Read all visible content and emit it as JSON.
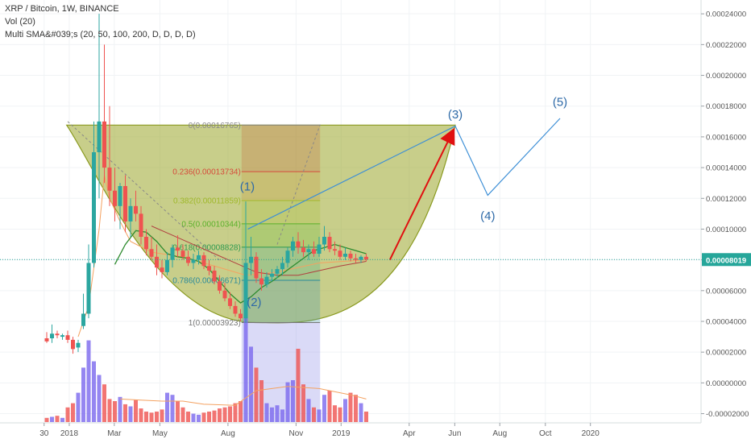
{
  "legend": {
    "symbol": "XRP / Bitcoin, 1W, BINANCE",
    "volume": "Vol (20)",
    "indicator": "Multi SMA&#039;s (20, 50, 100, 200, D, D, D, D)"
  },
  "colors": {
    "up": "#2ba6a0",
    "down": "#ef5350",
    "vol_up": "#7b68ee",
    "vol_down": "#ef5350",
    "cup_fill": "#9aa62a",
    "fib_top": "#c0885a",
    "wave": "#3d8fd6",
    "arrow": "#e01010",
    "price_tag": "#26a69a"
  },
  "chart_data": {
    "type": "candlestick",
    "timeframe": "1W",
    "y_axis": {
      "ticks": [
        "0.00024000",
        "0.00022000",
        "0.00020000",
        "0.00018000",
        "0.00016000",
        "0.00014000",
        "0.00012000",
        "0.00010000",
        "0.00008000",
        "0.00006000",
        "0.00004000",
        "0.00002000",
        "0.00000000",
        "-0.00002000"
      ],
      "last_price": "0.00008019",
      "ylim": [
        -2.6e-05,
        0.000249
      ]
    },
    "x_axis": {
      "ticks": [
        {
          "label": "30",
          "t": -0.5
        },
        {
          "label": "2018",
          "t": 4.3
        },
        {
          "label": "Mar",
          "t": 12.9
        },
        {
          "label": "May",
          "t": 21.6
        },
        {
          "label": "Aug",
          "t": 34.6
        },
        {
          "label": "Nov",
          "t": 47.6
        },
        {
          "label": "2019",
          "t": 56.2
        },
        {
          "label": "Apr",
          "t": 69.2
        },
        {
          "label": "Jun",
          "t": 77.9
        },
        {
          "label": "Aug",
          "t": 86.5
        },
        {
          "label": "Oct",
          "t": 95.2
        },
        {
          "label": "2020",
          "t": 103.8
        }
      ]
    },
    "candles": [
      {
        "o": 2.9e-05,
        "h": 3.3e-05,
        "l": 2.6e-05,
        "c": 2.7e-05
      },
      {
        "o": 2.9e-05,
        "h": 3.8e-05,
        "l": 2.6e-05,
        "c": 3.2e-05
      },
      {
        "o": 3.2e-05,
        "h": 3.4e-05,
        "l": 2.9e-05,
        "c": 3.1e-05
      },
      {
        "o": 3e-05,
        "h": 3.2e-05,
        "l": 2.8e-05,
        "c": 3.1e-05
      },
      {
        "o": 3.1e-05,
        "h": 3.4e-05,
        "l": 2.6e-05,
        "c": 2.8e-05
      },
      {
        "o": 2.8e-05,
        "h": 3e-05,
        "l": 1.9e-05,
        "c": 2.2e-05
      },
      {
        "o": 2.3e-05,
        "h": 2.8e-05,
        "l": 2e-05,
        "c": 2.6e-05
      },
      {
        "o": 3.7e-05,
        "h": 5.8e-05,
        "l": 3.5e-05,
        "c": 4.5e-05
      },
      {
        "o": 4.5e-05,
        "h": 9e-05,
        "l": 4.2e-05,
        "c": 7.8e-05
      },
      {
        "o": 7.8e-05,
        "h": 0.00017,
        "l": 7.5e-05,
        "c": 0.00015
      },
      {
        "o": 0.00015,
        "h": 0.00024,
        "l": 0.00012,
        "c": 0.00017
      },
      {
        "o": 0.00017,
        "h": 0.00022,
        "l": 0.00013,
        "c": 0.00014
      },
      {
        "o": 0.00014,
        "h": 0.00018,
        "l": 0.000115,
        "c": 0.000125
      },
      {
        "o": 0.000125,
        "h": 0.00014,
        "l": 0.000105,
        "c": 0.000115
      },
      {
        "o": 0.000115,
        "h": 0.00013,
        "l": 0.0001,
        "c": 0.000128
      },
      {
        "o": 0.000128,
        "h": 0.000135,
        "l": 9.8e-05,
        "c": 0.000105
      },
      {
        "o": 0.000105,
        "h": 0.00012,
        "l": 9.5e-05,
        "c": 0.000115
      },
      {
        "o": 0.000115,
        "h": 0.000125,
        "l": 0.000105,
        "c": 0.00011
      },
      {
        "o": 0.00011,
        "h": 0.000115,
        "l": 9e-05,
        "c": 9.5e-05
      },
      {
        "o": 9.5e-05,
        "h": 0.0001,
        "l": 8.3e-05,
        "c": 8.7e-05
      },
      {
        "o": 8.7e-05,
        "h": 9.5e-05,
        "l": 8e-05,
        "c": 8.2e-05
      },
      {
        "o": 8.2e-05,
        "h": 9e-05,
        "l": 7e-05,
        "c": 7.5e-05
      },
      {
        "o": 7.5e-05,
        "h": 8e-05,
        "l": 6.8e-05,
        "c": 7.2e-05
      },
      {
        "o": 7.2e-05,
        "h": 8.5e-05,
        "l": 7e-05,
        "c": 8e-05
      },
      {
        "o": 8e-05,
        "h": 9e-05,
        "l": 7.5e-05,
        "c": 8.8e-05
      },
      {
        "o": 8.8e-05,
        "h": 9.6e-05,
        "l": 8.2e-05,
        "c": 8.6e-05
      },
      {
        "o": 8.6e-05,
        "h": 9e-05,
        "l": 8e-05,
        "c": 8.2e-05
      },
      {
        "o": 8.2e-05,
        "h": 8.6e-05,
        "l": 7.6e-05,
        "c": 7.8e-05
      },
      {
        "o": 7.8e-05,
        "h": 8.4e-05,
        "l": 7.4e-05,
        "c": 8e-05
      },
      {
        "o": 8e-05,
        "h": 8.6e-05,
        "l": 7.7e-05,
        "c": 8.3e-05
      },
      {
        "o": 8.3e-05,
        "h": 8.5e-05,
        "l": 7.4e-05,
        "c": 7.6e-05
      },
      {
        "o": 7.6e-05,
        "h": 8e-05,
        "l": 7e-05,
        "c": 7.3e-05
      },
      {
        "o": 7.3e-05,
        "h": 7.6e-05,
        "l": 6.4e-05,
        "c": 6.6e-05
      },
      {
        "o": 6.6e-05,
        "h": 7e-05,
        "l": 5.8e-05,
        "c": 6e-05
      },
      {
        "o": 6e-05,
        "h": 6.5e-05,
        "l": 5.3e-05,
        "c": 5.5e-05
      },
      {
        "o": 5.5e-05,
        "h": 5.9e-05,
        "l": 4.8e-05,
        "c": 5e-05
      },
      {
        "o": 5e-05,
        "h": 5.3e-05,
        "l": 4.3e-05,
        "c": 4.5e-05
      },
      {
        "o": 4.5e-05,
        "h": 4.8e-05,
        "l": 4e-05,
        "c": 4.2e-05
      },
      {
        "o": 4.2e-05,
        "h": 0.000118,
        "l": 3.9e-05,
        "c": 7.8e-05
      },
      {
        "o": 7.8e-05,
        "h": 9.5e-05,
        "l": 7e-05,
        "c": 8.2e-05
      },
      {
        "o": 8.2e-05,
        "h": 8.5e-05,
        "l": 6.5e-05,
        "c": 6.8e-05
      },
      {
        "o": 6.8e-05,
        "h": 7.4e-05,
        "l": 6e-05,
        "c": 6.4e-05
      },
      {
        "o": 6.4e-05,
        "h": 7.2e-05,
        "l": 6.2e-05,
        "c": 6.9e-05
      },
      {
        "o": 6.9e-05,
        "h": 7.4e-05,
        "l": 6.6e-05,
        "c": 7.1e-05
      },
      {
        "o": 7.1e-05,
        "h": 7.6e-05,
        "l": 6.8e-05,
        "c": 7.4e-05
      },
      {
        "o": 7.4e-05,
        "h": 8.2e-05,
        "l": 7e-05,
        "c": 7.8e-05
      },
      {
        "o": 7.8e-05,
        "h": 8.8e-05,
        "l": 7.5e-05,
        "c": 8.6e-05
      },
      {
        "o": 8.6e-05,
        "h": 9.5e-05,
        "l": 8.2e-05,
        "c": 9.2e-05
      },
      {
        "o": 9.2e-05,
        "h": 9.8e-05,
        "l": 8.4e-05,
        "c": 8.8e-05
      },
      {
        "o": 8.8e-05,
        "h": 9.3e-05,
        "l": 8.2e-05,
        "c": 8.5e-05
      },
      {
        "o": 8.5e-05,
        "h": 9e-05,
        "l": 8e-05,
        "c": 8.7e-05
      },
      {
        "o": 8.7e-05,
        "h": 9.2e-05,
        "l": 8.2e-05,
        "c": 8.4e-05
      },
      {
        "o": 8.4e-05,
        "h": 9.5e-05,
        "l": 8.2e-05,
        "c": 9e-05
      },
      {
        "o": 9e-05,
        "h": 0.000102,
        "l": 8.6e-05,
        "c": 9.5e-05
      },
      {
        "o": 9.5e-05,
        "h": 9.8e-05,
        "l": 8.5e-05,
        "c": 8.7e-05
      },
      {
        "o": 8.7e-05,
        "h": 9.2e-05,
        "l": 8.3e-05,
        "c": 8.6e-05
      },
      {
        "o": 8.6e-05,
        "h": 9e-05,
        "l": 8e-05,
        "c": 8.2e-05
      },
      {
        "o": 8.2e-05,
        "h": 8.8e-05,
        "l": 8e-05,
        "c": 8.4e-05
      },
      {
        "o": 8.4e-05,
        "h": 8.6e-05,
        "l": 7.9e-05,
        "c": 8.1e-05
      },
      {
        "o": 8.1e-05,
        "h": 8.4e-05,
        "l": 7.8e-05,
        "c": 8e-05
      },
      {
        "o": 8e-05,
        "h": 8.3e-05,
        "l": 7.8e-05,
        "c": 8.2e-05
      },
      {
        "o": 8.2e-05,
        "h": 8.4e-05,
        "l": 7.9e-05,
        "c": 8.02e-05
      }
    ],
    "volume": [
      0.04,
      0.05,
      0.06,
      0.04,
      0.14,
      0.18,
      0.28,
      0.52,
      0.78,
      0.58,
      0.45,
      0.36,
      0.22,
      0.2,
      0.24,
      0.17,
      0.15,
      0.21,
      0.13,
      0.1,
      0.09,
      0.1,
      0.12,
      0.28,
      0.26,
      0.2,
      0.14,
      0.1,
      0.08,
      0.07,
      0.09,
      0.1,
      0.11,
      0.13,
      0.14,
      0.15,
      0.18,
      0.2,
      1.0,
      0.72,
      0.52,
      0.4,
      0.18,
      0.14,
      0.16,
      0.12,
      0.38,
      0.4,
      0.7,
      0.36,
      0.22,
      0.14,
      0.12,
      0.26,
      0.3,
      0.16,
      0.14,
      0.22,
      0.28,
      0.26,
      0.18,
      0.1
    ],
    "fib_levels": [
      {
        "ratio": "0",
        "value": 0.00016765,
        "label": "0(0.00016765)"
      },
      {
        "ratio": "0.236",
        "value": 0.00013734,
        "label": "0.236(0.00013734)"
      },
      {
        "ratio": "0.382",
        "value": 0.00011859,
        "label": "0.382(0.00011859)"
      },
      {
        "ratio": "0.5",
        "value": 0.00010344,
        "label": "0.5(0.00010344)"
      },
      {
        "ratio": "0.618",
        "value": 8.828e-05,
        "label": "0.618(0.00008828)"
      },
      {
        "ratio": "0.786",
        "value": 6.671e-05,
        "label": "0.786(0.00006671)"
      },
      {
        "ratio": "1",
        "value": 3.923e-05,
        "label": "1(0.00003923)"
      }
    ],
    "annotations": {
      "wave_labels": [
        {
          "text": "(1)",
          "t": 38.3,
          "v": 0.000125
        },
        {
          "text": "(2)",
          "t": 39.6,
          "v": 5e-05
        },
        {
          "text": "(3)",
          "t": 78.0,
          "v": 0.000172
        },
        {
          "text": "(4)",
          "t": 84.2,
          "v": 0.000106
        },
        {
          "text": "(5)",
          "t": 98.0,
          "v": 0.00018
        }
      ],
      "wave_path": [
        {
          "t": 38.4,
          "v": 0.0001
        },
        {
          "t": 78.0,
          "v": 0.000167
        },
        {
          "t": 84.2,
          "v": 0.000122
        },
        {
          "t": 98.0,
          "v": 0.000172
        }
      ],
      "cup_rim_value": 0.00016765,
      "cup_bottom_value": 3.92e-05,
      "cup_start_t": 3.8,
      "cup_end_t": 78.0,
      "cup_bottom_t": 40.0,
      "arrow": {
        "from": {
          "t": 65.5,
          "v": 8e-05
        },
        "to": {
          "t": 77.6,
          "v": 0.000164
        }
      },
      "fib_box": {
        "t_start": 37.2,
        "t_end": 52.2
      },
      "diag_line": [
        {
          "t": 4.0,
          "v": 0.00017
        },
        {
          "t": 52.2,
          "v": 0.000168
        }
      ]
    },
    "sma": {
      "sma20": [
        [
          13,
          7.7e-05
        ],
        [
          15,
          9e-05
        ],
        [
          17,
          9.9e-05
        ],
        [
          19,
          9.8e-05
        ],
        [
          21,
          9.2e-05
        ],
        [
          23,
          8.4e-05
        ],
        [
          25,
          8.2e-05
        ],
        [
          27,
          8.1e-05
        ],
        [
          29,
          7.9e-05
        ],
        [
          31,
          7.4e-05
        ],
        [
          33,
          6.6e-05
        ],
        [
          35,
          5.8e-05
        ],
        [
          37,
          5.2e-05
        ],
        [
          39,
          5.6e-05
        ],
        [
          41,
          6.2e-05
        ],
        [
          43,
          6.6e-05
        ],
        [
          45,
          7.1e-05
        ],
        [
          47,
          7.6e-05
        ],
        [
          49,
          8.1e-05
        ],
        [
          51,
          8.6e-05
        ],
        [
          53,
          8.8e-05
        ],
        [
          55,
          9e-05
        ],
        [
          57,
          8.8e-05
        ],
        [
          59,
          8.6e-05
        ],
        [
          61,
          8.4e-05
        ]
      ],
      "sma50": [
        [
          20,
          0.000102
        ],
        [
          24,
          9.6e-05
        ],
        [
          28,
          9e-05
        ],
        [
          32,
          8.4e-05
        ],
        [
          36,
          7.8e-05
        ],
        [
          40,
          7.2e-05
        ],
        [
          44,
          7e-05
        ],
        [
          48,
          7e-05
        ],
        [
          52,
          7.3e-05
        ],
        [
          56,
          7.6e-05
        ],
        [
          61,
          7.9e-05
        ]
      ],
      "orange": [
        [
          6,
          3e-05
        ],
        [
          8,
          5e-05
        ],
        [
          10,
          0.0001
        ],
        [
          11,
          0.000135
        ],
        [
          12,
          0.00012
        ],
        [
          14,
          0.000105
        ],
        [
          16,
          9.2e-05
        ],
        [
          20,
          8.5e-05
        ],
        [
          26,
          8.2e-05
        ],
        [
          32,
          7.6e-05
        ],
        [
          38,
          7e-05
        ],
        [
          44,
          7.2e-05
        ],
        [
          52,
          7.8e-05
        ],
        [
          61,
          8e-05
        ]
      ],
      "vol_ma": [
        [
          14,
          0.22
        ],
        [
          18,
          0.21
        ],
        [
          22,
          0.2
        ],
        [
          26,
          0.2
        ],
        [
          30,
          0.17
        ],
        [
          36,
          0.16
        ],
        [
          40,
          0.3
        ],
        [
          46,
          0.34
        ],
        [
          52,
          0.32
        ],
        [
          58,
          0.26
        ],
        [
          61,
          0.22
        ]
      ]
    }
  }
}
